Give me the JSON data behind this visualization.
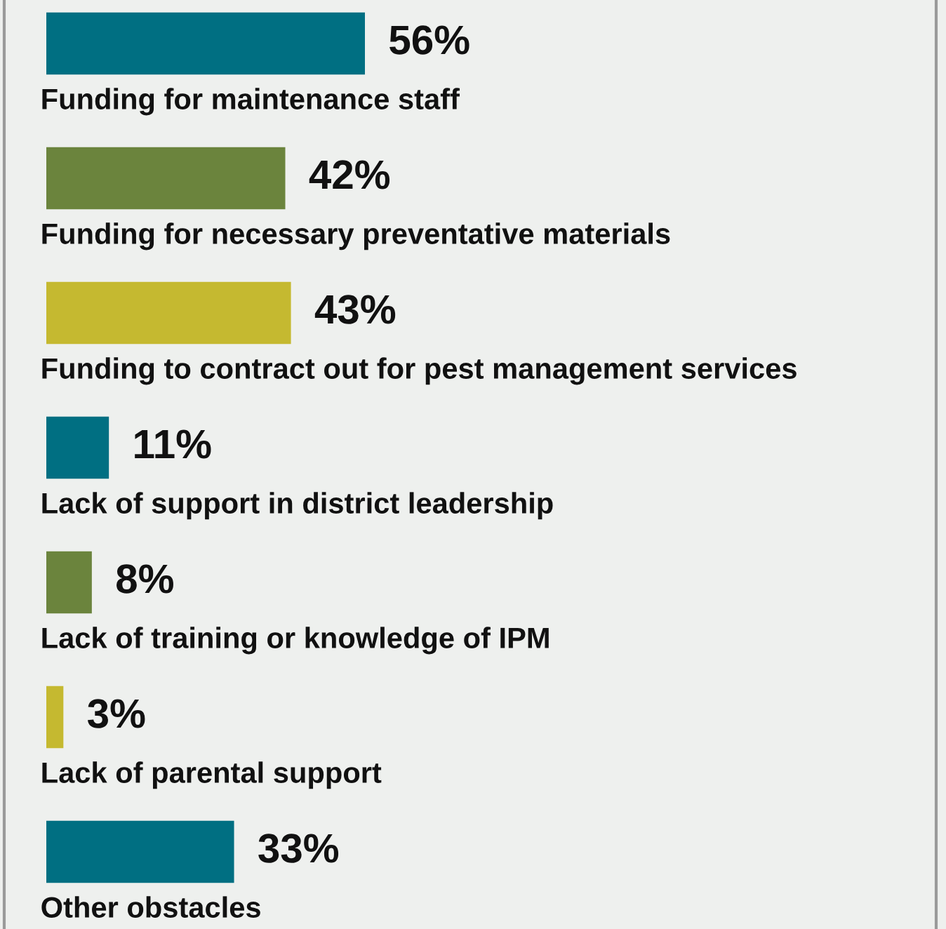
{
  "chart_data": {
    "type": "bar",
    "orientation": "horizontal",
    "categories": [
      "Funding for maintenance staff",
      "Funding for necessary preventative materials",
      "Funding to contract out for pest management services",
      "Lack of support in district leadership",
      "Lack of training or knowledge of IPM",
      "Lack of parental support",
      "Other obstacles"
    ],
    "values": [
      56,
      42,
      43,
      11,
      8,
      3,
      33
    ],
    "value_labels": [
      "56%",
      "42%",
      "43%",
      "11%",
      "8%",
      "3%",
      "33%"
    ],
    "colors": [
      "#006f82",
      "#6b843d",
      "#c5b930",
      "#006f82",
      "#6b843d",
      "#c5b930",
      "#006f82"
    ]
  }
}
